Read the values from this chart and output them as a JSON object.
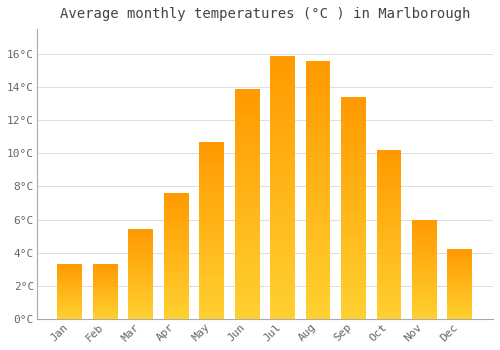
{
  "title": "Average monthly temperatures (°C ) in Marlborough",
  "months": [
    "Jan",
    "Feb",
    "Mar",
    "Apr",
    "May",
    "Jun",
    "Jul",
    "Aug",
    "Sep",
    "Oct",
    "Nov",
    "Dec"
  ],
  "values": [
    3.3,
    3.3,
    5.4,
    7.6,
    10.7,
    13.9,
    15.9,
    15.6,
    13.4,
    10.2,
    6.0,
    4.2
  ],
  "bar_color_top": "#FFA500",
  "bar_color_bottom": "#FFD040",
  "ylim": [
    0,
    17.5
  ],
  "yticks": [
    0,
    2,
    4,
    6,
    8,
    10,
    12,
    14,
    16
  ],
  "background_color": "#FFFFFF",
  "grid_color": "#DDDDDD",
  "title_fontsize": 10,
  "tick_fontsize": 8,
  "bar_width": 0.7
}
